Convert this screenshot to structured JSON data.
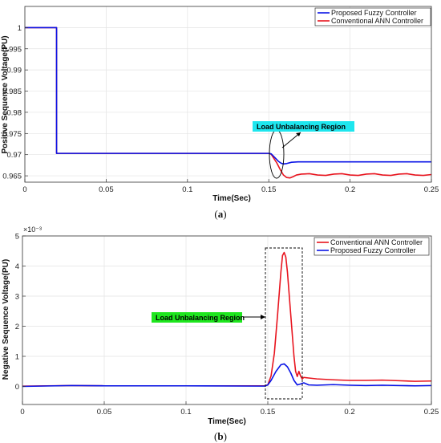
{
  "colors": {
    "blue": "#0a14e6",
    "red": "#e8141e",
    "cyan": "#1ee6ee",
    "green": "#1ee61e",
    "grid": "#e3e3e3"
  },
  "chart_data": [
    {
      "type": "line",
      "caption": "(a)",
      "xlabel": "Time(Sec)",
      "ylabel": "Positive Sequence Voltage(PU)",
      "xlim": [
        0,
        0.25
      ],
      "ylim": [
        0.9635,
        1.005
      ],
      "xticks": [
        0,
        0.05,
        0.1,
        0.15,
        0.2,
        0.25
      ],
      "xtick_labels": [
        "0",
        "0.05",
        "0.1",
        "0.15",
        "0.2",
        "0.25"
      ],
      "yticks": [
        0.965,
        0.97,
        0.975,
        0.98,
        0.985,
        0.99,
        0.995,
        1
      ],
      "ytick_labels": [
        "0.965",
        "0.97",
        "0.975",
        "0.98",
        "0.985",
        "0.99",
        "0.995",
        "1"
      ],
      "grid": true,
      "legend_position": "top-right",
      "annotation": "Load Unbalancing Region",
      "series": [
        {
          "name": "Proposed Fuzzy Controller",
          "color": "blue",
          "points": [
            [
              0,
              1
            ],
            [
              0.0195,
              1
            ],
            [
              0.0195,
              0.9703
            ],
            [
              0.15,
              0.9703
            ],
            [
              0.1515,
              0.9702
            ],
            [
              0.153,
              0.9696
            ],
            [
              0.1545,
              0.969
            ],
            [
              0.156,
              0.9684
            ],
            [
              0.1575,
              0.968
            ],
            [
              0.159,
              0.9678
            ],
            [
              0.161,
              0.9679
            ],
            [
              0.164,
              0.9682
            ],
            [
              0.168,
              0.9683
            ],
            [
              0.175,
              0.9683
            ],
            [
              0.19,
              0.9683
            ],
            [
              0.21,
              0.9683
            ],
            [
              0.23,
              0.9683
            ],
            [
              0.25,
              0.9683
            ]
          ]
        },
        {
          "name": "Conventional ANN Controller",
          "color": "red",
          "points": [
            [
              0,
              1
            ],
            [
              0.0195,
              1
            ],
            [
              0.0195,
              0.9703
            ],
            [
              0.15,
              0.9703
            ],
            [
              0.1515,
              0.9701
            ],
            [
              0.153,
              0.9692
            ],
            [
              0.155,
              0.968
            ],
            [
              0.157,
              0.9665
            ],
            [
              0.159,
              0.9652
            ],
            [
              0.161,
              0.9646
            ],
            [
              0.163,
              0.9645
            ],
            [
              0.165,
              0.9648
            ],
            [
              0.167,
              0.9652
            ],
            [
              0.17,
              0.9654
            ],
            [
              0.175,
              0.9655
            ],
            [
              0.18,
              0.9652
            ],
            [
              0.185,
              0.9651
            ],
            [
              0.19,
              0.9654
            ],
            [
              0.195,
              0.9655
            ],
            [
              0.2,
              0.9652
            ],
            [
              0.205,
              0.9651
            ],
            [
              0.21,
              0.9654
            ],
            [
              0.215,
              0.9655
            ],
            [
              0.22,
              0.9652
            ],
            [
              0.225,
              0.9651
            ],
            [
              0.23,
              0.9654
            ],
            [
              0.235,
              0.9655
            ],
            [
              0.24,
              0.9652
            ],
            [
              0.245,
              0.9651
            ],
            [
              0.25,
              0.9653
            ]
          ]
        }
      ]
    },
    {
      "type": "line",
      "caption": "(b)",
      "xlabel": "Time(Sec)",
      "ylabel": "Negative Sequence Voltage(PU)",
      "exponent_label": "×10⁻³",
      "xlim": [
        0,
        0.25
      ],
      "ylim": [
        -0.6,
        5
      ],
      "xticks": [
        0,
        0.05,
        0.1,
        0.15,
        0.2,
        0.25
      ],
      "xtick_labels": [
        "0",
        "0.05",
        "0.1",
        "0.15",
        "0.2",
        "0.25"
      ],
      "yticks": [
        0,
        1,
        2,
        3,
        4,
        5
      ],
      "ytick_labels": [
        "0",
        "1",
        "2",
        "3",
        "4",
        "5"
      ],
      "grid": true,
      "legend_position": "top-right",
      "annotation": "Load Unbalancing Region",
      "series": [
        {
          "name": "Conventional ANN Controller",
          "color": "red",
          "points": [
            [
              0,
              0.01
            ],
            [
              0.03,
              0.03
            ],
            [
              0.05,
              0.02
            ],
            [
              0.1,
              0.02
            ],
            [
              0.148,
              0.02
            ],
            [
              0.15,
              0.05
            ],
            [
              0.152,
              0.35
            ],
            [
              0.154,
              1.1
            ],
            [
              0.156,
              2.4
            ],
            [
              0.158,
              3.8
            ],
            [
              0.159,
              4.35
            ],
            [
              0.16,
              4.45
            ],
            [
              0.161,
              4.3
            ],
            [
              0.162,
              3.8
            ],
            [
              0.164,
              2.4
            ],
            [
              0.166,
              1.0
            ],
            [
              0.167,
              0.5
            ],
            [
              0.168,
              0.33
            ],
            [
              0.169,
              0.5
            ],
            [
              0.17,
              0.35
            ],
            [
              0.171,
              0.25
            ],
            [
              0.172,
              0.3
            ],
            [
              0.175,
              0.28
            ],
            [
              0.18,
              0.25
            ],
            [
              0.19,
              0.22
            ],
            [
              0.2,
              0.2
            ],
            [
              0.21,
              0.2
            ],
            [
              0.22,
              0.21
            ],
            [
              0.23,
              0.19
            ],
            [
              0.24,
              0.17
            ],
            [
              0.25,
              0.18
            ]
          ]
        },
        {
          "name": "Proposed Fuzzy Controller",
          "color": "blue",
          "points": [
            [
              0,
              0.0
            ],
            [
              0.03,
              0.03
            ],
            [
              0.05,
              0.02
            ],
            [
              0.1,
              0.02
            ],
            [
              0.148,
              0.01
            ],
            [
              0.15,
              0.05
            ],
            [
              0.152,
              0.2
            ],
            [
              0.155,
              0.5
            ],
            [
              0.158,
              0.72
            ],
            [
              0.16,
              0.75
            ],
            [
              0.162,
              0.65
            ],
            [
              0.164,
              0.45
            ],
            [
              0.166,
              0.2
            ],
            [
              0.168,
              0.05
            ],
            [
              0.17,
              0.08
            ],
            [
              0.172,
              0.12
            ],
            [
              0.175,
              0.05
            ],
            [
              0.18,
              0.04
            ],
            [
              0.19,
              0.06
            ],
            [
              0.2,
              0.04
            ],
            [
              0.21,
              0.03
            ],
            [
              0.22,
              0.04
            ],
            [
              0.23,
              0.03
            ],
            [
              0.24,
              0.02
            ],
            [
              0.25,
              0.03
            ]
          ]
        }
      ]
    }
  ]
}
